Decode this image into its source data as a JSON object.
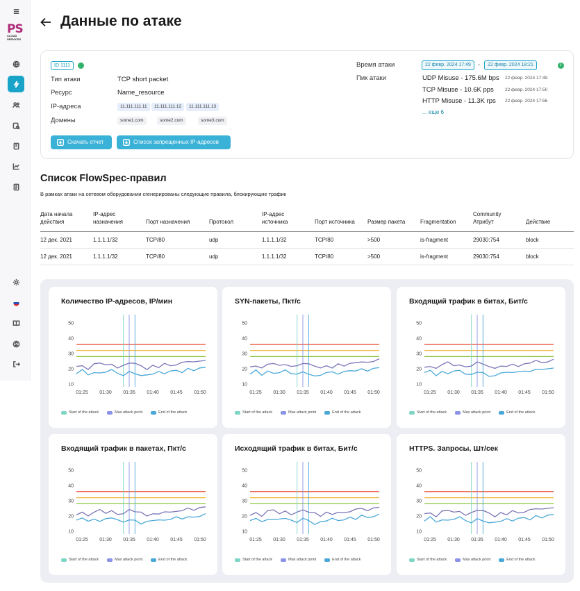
{
  "sidebar": {
    "items": [
      {
        "name": "menu-icon"
      },
      {
        "name": "globe-icon"
      },
      {
        "name": "attack-icon",
        "active": true
      },
      {
        "name": "users-icon"
      },
      {
        "name": "settings-search-icon"
      },
      {
        "name": "document-icon"
      },
      {
        "name": "chart-icon"
      },
      {
        "name": "report-icon"
      },
      {
        "name": "theme-icon"
      },
      {
        "name": "language-flag-icon"
      },
      {
        "name": "book-icon"
      },
      {
        "name": "profile-icon"
      },
      {
        "name": "logout-icon"
      }
    ],
    "logo": {
      "ps": "PS",
      "line1": "CLOUD",
      "line2": "SERVICES"
    }
  },
  "header": {
    "title": "Данные по атаке"
  },
  "attack": {
    "id": "ID 1111",
    "type_label": "Тип атаки",
    "type_value": "TCP short packet",
    "resource_label": "Ресурс",
    "resource_value": "Name_resource",
    "ip_label": "IP-адреса",
    "ips": [
      "11.111.111.11",
      "11.111.111.12",
      "11.111.111.13"
    ],
    "domains_label": "Домены",
    "domains": [
      "some1.com",
      "some2.com",
      "some3.com"
    ],
    "download_button": "Скачать отчет",
    "blocked_button": "Список запрещенных IP-адресов",
    "time_label": "Время атаки",
    "time_start": "22 февр. 2024 17:49",
    "time_sep": "-",
    "time_end": "22 февр. 2024 18:21",
    "peak_label": "Пик атаки",
    "peaks": [
      {
        "value": "UDP Misuse - 175.6M bps",
        "time": "22 февр. 2024 17:49"
      },
      {
        "value": "TCP Misuse - 10.6K pps",
        "time": "22 февр. 2024 17:50"
      },
      {
        "value": "HTTP Misuse - 11.3K rps",
        "time": "22 февр. 2024 17:56"
      }
    ],
    "more_link": "... еще 6"
  },
  "flowspec": {
    "title": "Список FlowSpec-правил",
    "subtitle": "В рамках атаки на сетевом оборудовании сгенерированы следующие правила, блокирующие трафик",
    "headers": [
      "Дата начала действия",
      "IP-адрес назначения",
      "Порт назначения",
      "Протокол",
      "IP-адрес источника",
      "Порт источника",
      "Размер пакета",
      "Fragmentation",
      "Community Атрибут",
      "Действие"
    ],
    "rows": [
      [
        "12 дек. 2021",
        "1.1.1.1/32",
        "TCP/80",
        "udp",
        "1.1.1.1/32",
        "TCP/80",
        ">500",
        "is-fragment",
        "29030:754",
        "block"
      ],
      [
        "12 дек. 2021",
        "1.1.1.1/32",
        "TCP/80",
        "udp",
        "1.1.1.1/32",
        "TCP/80",
        ">500",
        "is-fragment",
        "29030:754",
        "block"
      ]
    ]
  },
  "legend": {
    "start": "Start of the attack",
    "max": "Max attack point",
    "end": "End of the attack"
  },
  "colors": {
    "accent": "#1aa3c8",
    "start": "#7fd6c4",
    "max": "#8b93e8",
    "end": "#4aa8d8",
    "threshold_red": "#e8503a",
    "threshold_orange": "#f0b840",
    "threshold_green": "#8cc63f",
    "series_purple": "#7a76b8",
    "series_blue": "#4aa8d8"
  },
  "chart_data": [
    {
      "type": "line",
      "title": "Количество IP-адресов, IP/мин"
    },
    {
      "type": "line",
      "title": "SYN-пакеты, Пкт/с"
    },
    {
      "type": "line",
      "title": "Входящий трафик в битах, Бит/с"
    },
    {
      "type": "line",
      "title": "Входящий трафик в пакетах, Пкт/с"
    },
    {
      "type": "line",
      "title": "Исходящий трафик в битах, Бит/с"
    },
    {
      "type": "line",
      "title": "HTTPS. Запросы, Шт/сек"
    }
  ],
  "chart_common": {
    "x_ticks": [
      "01:25",
      "01:30",
      "01:35",
      "01:40",
      "01:45",
      "01:50"
    ],
    "y_ticks": [
      10,
      20,
      30,
      40,
      50
    ],
    "ylim": [
      10,
      50
    ],
    "thresholds": [
      36,
      32,
      28
    ],
    "markers": [
      "01:34",
      "01:35",
      "01:36"
    ],
    "series": [
      {
        "values": [
          21,
          22,
          20,
          23,
          24,
          22,
          23,
          21,
          22,
          24,
          23,
          22,
          20,
          22,
          21,
          23,
          22,
          23,
          24,
          25,
          24,
          25,
          26
        ]
      },
      {
        "values": [
          17,
          19,
          16,
          18,
          17,
          18,
          19,
          17,
          16,
          18,
          17,
          15,
          16,
          17,
          18,
          17,
          18,
          19,
          18,
          20,
          19,
          20,
          21
        ]
      }
    ]
  }
}
